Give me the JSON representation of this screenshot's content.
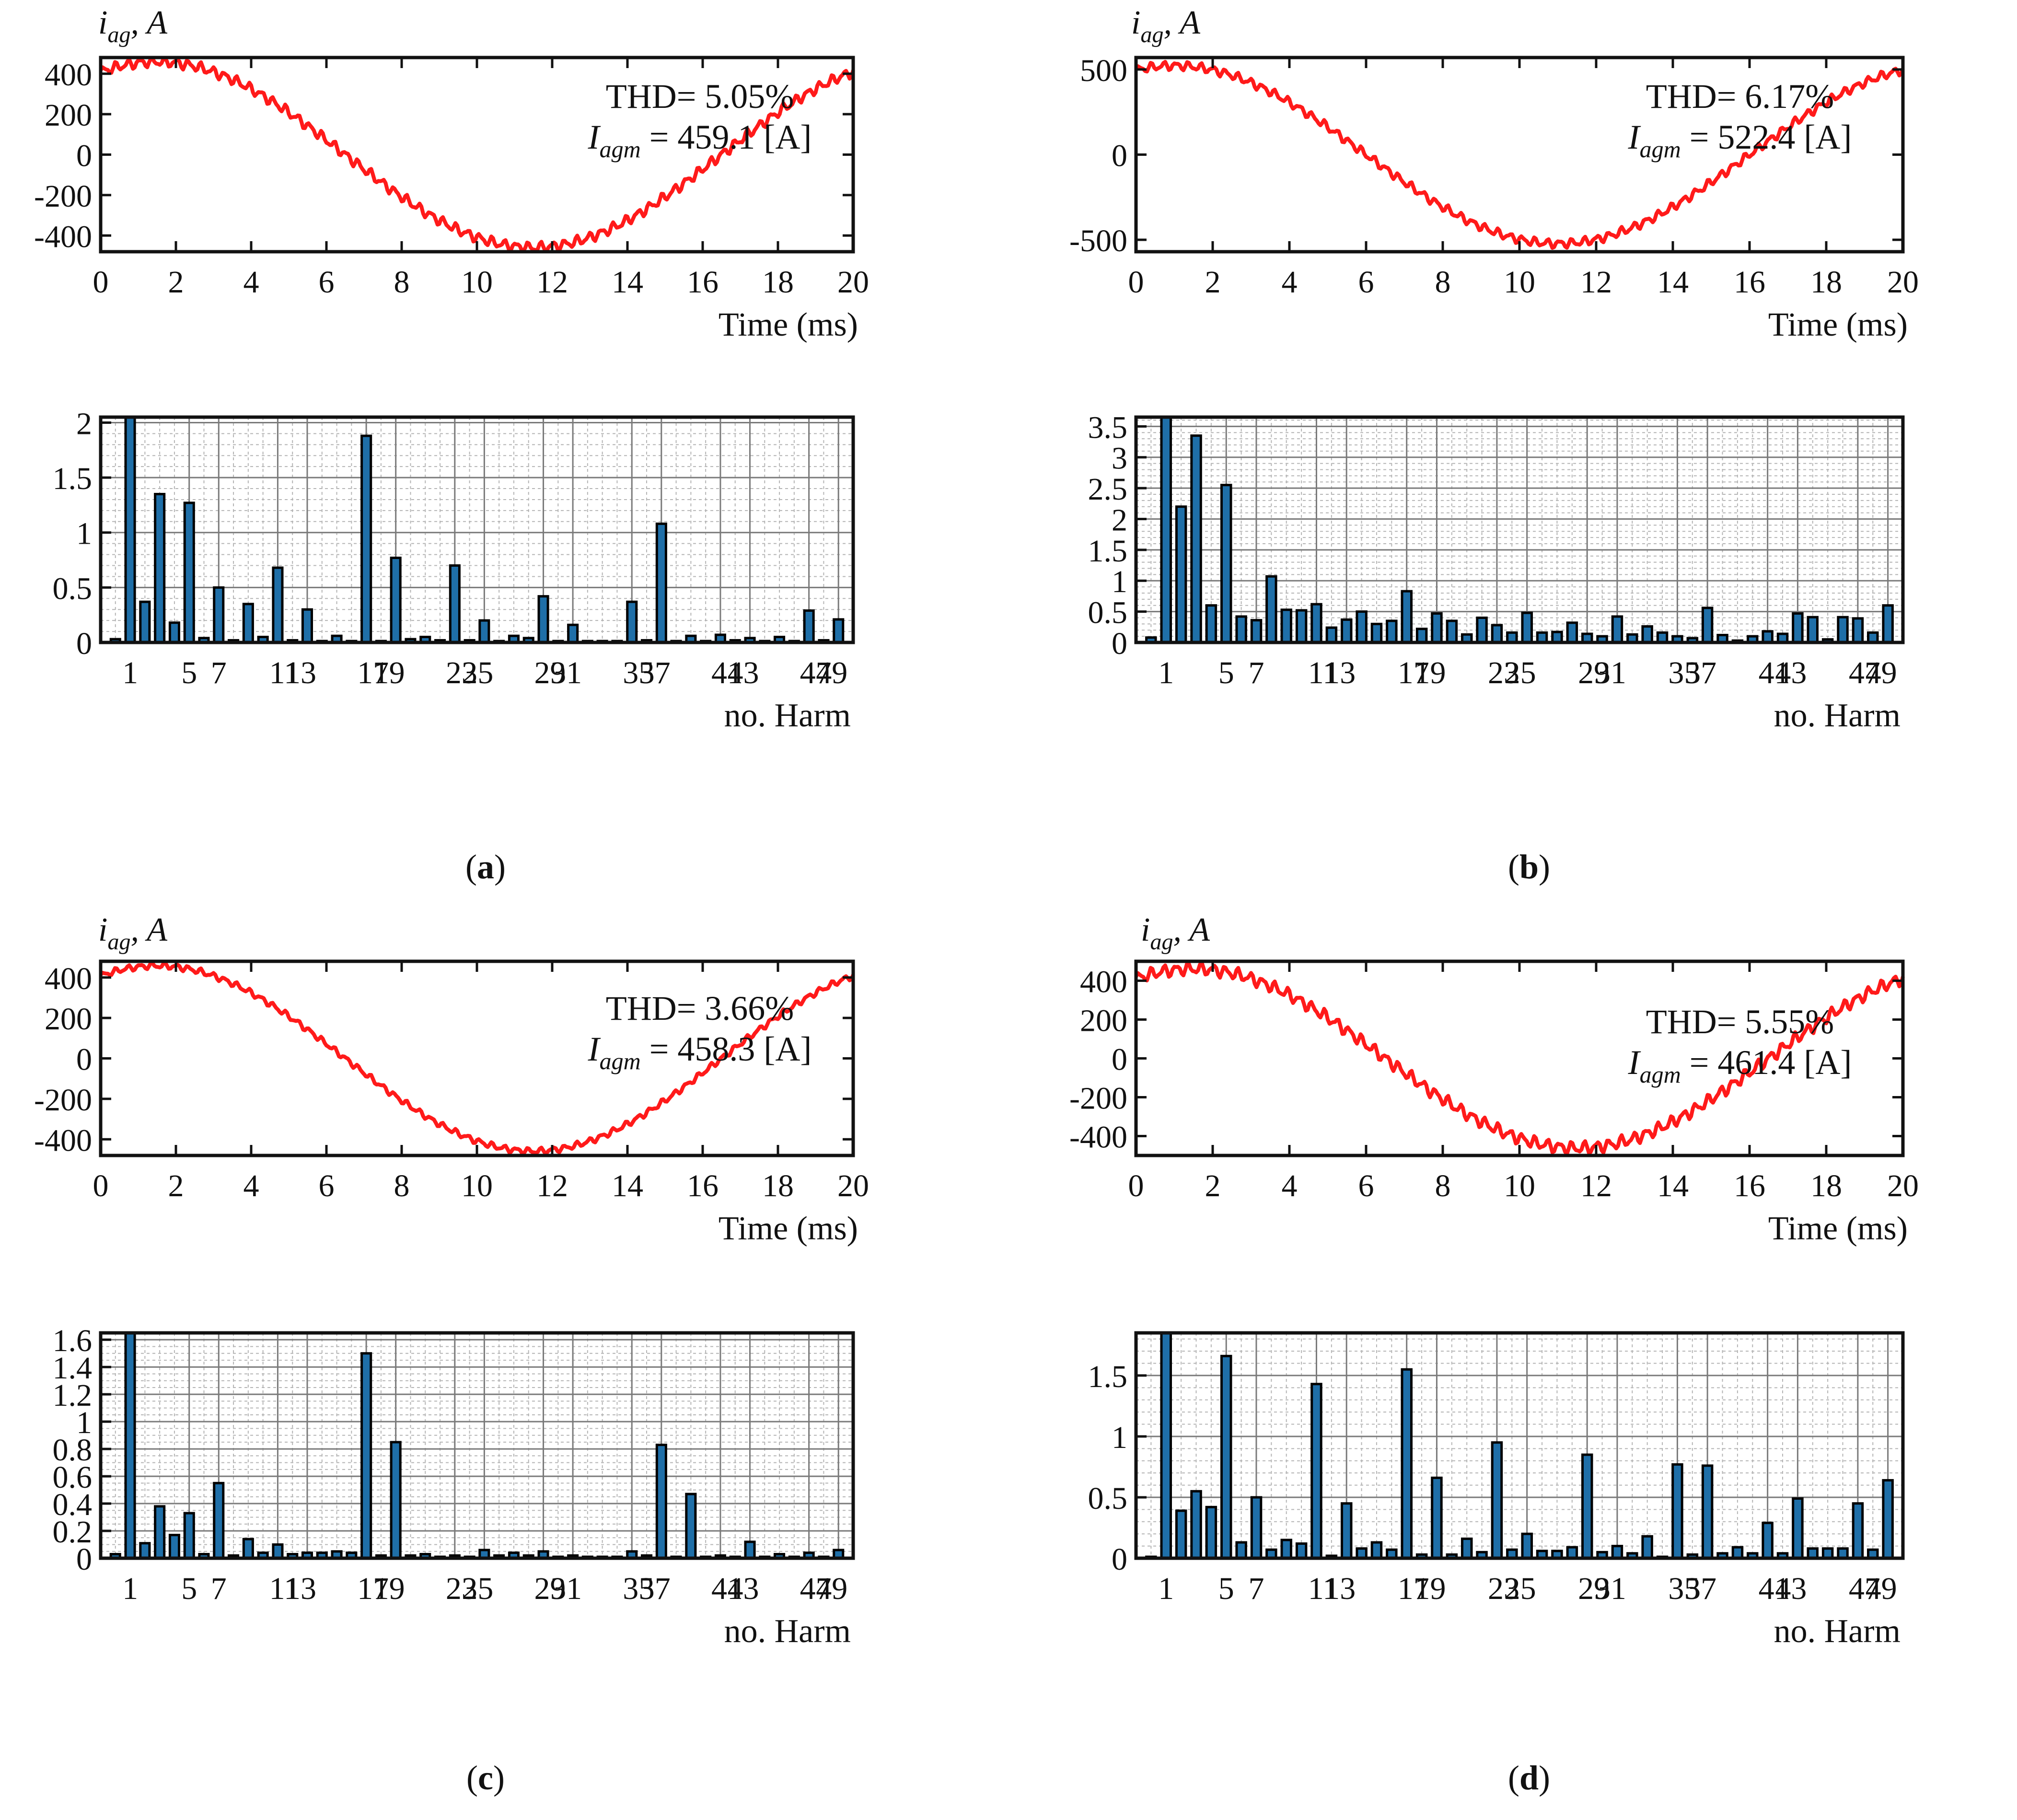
{
  "figure": {
    "time_xlabel": "Time (ms)",
    "harm_xlabel": "no. Harm",
    "colors": {
      "wave": "#ff1a1a",
      "bar_fill": "#1f6fa8",
      "bar_edge": "#000000",
      "axis": "#111111",
      "grid_major": "#7a7a7a",
      "grid_minor": "#b5b5b5"
    },
    "panels": [
      {
        "caption": "a",
        "ylabel_i": "i",
        "ylabel_sub": "ag",
        "ylabel_unit": "A",
        "thd_text": "THD= 5.05%",
        "iagm_symbol": "I",
        "iagm_sub": "agm",
        "iagm_value": "= 459.1 [A]",
        "waveform": {
          "xticks": [
            "0",
            "2",
            "4",
            "6",
            "8",
            "10",
            "12",
            "14",
            "16",
            "18",
            "20"
          ],
          "yticks": [
            "400",
            "200",
            "0",
            "-200",
            "-400"
          ],
          "ytick_values": [
            400,
            200,
            0,
            -200,
            -400
          ],
          "xlim": [
            0,
            20
          ],
          "ylim": [
            -480,
            480
          ],
          "amplitude": 459.1,
          "peak_ms": 1.5,
          "ripple": 20
        },
        "spectrum": {
          "ylim": [
            0,
            2.05
          ],
          "yticks": [
            "2",
            "1.5",
            "1",
            "0.5",
            "0"
          ],
          "ytick_values": [
            2,
            1.5,
            1,
            0.5,
            0
          ],
          "minor_step": 0.1,
          "xticks": [
            "1",
            "5",
            "7",
            "11",
            "13",
            "17",
            "19",
            "23",
            "25",
            "29",
            "31",
            "35",
            "37",
            "41",
            "43",
            "47",
            "49"
          ],
          "values": [
            0.03,
            2.05,
            0.37,
            1.35,
            0.18,
            1.27,
            0.04,
            0.5,
            0.02,
            0.35,
            0.05,
            0.68,
            0.02,
            0.3,
            0.01,
            0.06,
            0.01,
            1.88,
            0.01,
            0.77,
            0.03,
            0.05,
            0.02,
            0.7,
            0.02,
            0.2,
            0.01,
            0.06,
            0.04,
            0.42,
            0.01,
            0.16,
            0.01,
            0.01,
            0.01,
            0.37,
            0.02,
            1.08,
            0.01,
            0.06,
            0.01,
            0.07,
            0.02,
            0.04,
            0.01,
            0.05,
            0.01,
            0.29,
            0.02,
            0.21
          ]
        }
      },
      {
        "caption": "b",
        "ylabel_i": "i",
        "ylabel_sub": "ag",
        "ylabel_unit": "A",
        "thd_text": "THD= 6.17%",
        "iagm_symbol": "I",
        "iagm_sub": "agm",
        "iagm_value": "= 522.4 [A]",
        "waveform": {
          "xticks": [
            "0",
            "2",
            "4",
            "6",
            "8",
            "10",
            "12",
            "14",
            "16",
            "18",
            "20"
          ],
          "yticks": [
            "500",
            "0",
            "-500"
          ],
          "ytick_values": [
            500,
            0,
            -500
          ],
          "xlim": [
            0,
            20
          ],
          "ylim": [
            -570,
            570
          ],
          "amplitude": 522.4,
          "peak_ms": 1.0,
          "ripple": 20
        },
        "spectrum": {
          "ylim": [
            0,
            3.65
          ],
          "yticks": [
            "3.5",
            "3",
            "2.5",
            "2",
            "1.5",
            "1",
            "0.5",
            "0"
          ],
          "ytick_values": [
            3.5,
            3,
            2.5,
            2,
            1.5,
            1,
            0.5,
            0
          ],
          "minor_step": 0.1,
          "xticks": [
            "1",
            "5",
            "7",
            "11",
            "13",
            "17",
            "19",
            "23",
            "25",
            "29",
            "31",
            "35",
            "37",
            "41",
            "43",
            "47",
            "49"
          ],
          "values": [
            0.08,
            3.65,
            2.2,
            3.35,
            0.6,
            2.55,
            0.42,
            0.36,
            1.07,
            0.53,
            0.52,
            0.62,
            0.24,
            0.37,
            0.5,
            0.3,
            0.35,
            0.83,
            0.22,
            0.47,
            0.35,
            0.13,
            0.4,
            0.28,
            0.16,
            0.48,
            0.16,
            0.17,
            0.32,
            0.14,
            0.1,
            0.42,
            0.13,
            0.26,
            0.16,
            0.1,
            0.07,
            0.56,
            0.12,
            0.03,
            0.1,
            0.18,
            0.14,
            0.47,
            0.41,
            0.05,
            0.41,
            0.39,
            0.16,
            0.6
          ]
        }
      },
      {
        "caption": "c",
        "ylabel_i": "i",
        "ylabel_sub": "ag",
        "ylabel_unit": "A",
        "thd_text": "THD= 3.66%",
        "iagm_symbol": "I",
        "iagm_sub": "agm",
        "iagm_value": "= 458.3 [A]",
        "waveform": {
          "xticks": [
            "0",
            "2",
            "4",
            "6",
            "8",
            "10",
            "12",
            "14",
            "16",
            "18",
            "20"
          ],
          "yticks": [
            "400",
            "200",
            "0",
            "-200",
            "-400"
          ],
          "ytick_values": [
            400,
            200,
            0,
            -200,
            -400
          ],
          "xlim": [
            0,
            20
          ],
          "ylim": [
            -480,
            480
          ],
          "amplitude": 458.3,
          "peak_ms": 1.5,
          "ripple": 12
        },
        "spectrum": {
          "ylim": [
            0,
            1.65
          ],
          "yticks": [
            "1.6",
            "1.4",
            "1.2",
            "1",
            "0.8",
            "0.6",
            "0.4",
            "0.2",
            "0"
          ],
          "ytick_values": [
            1.6,
            1.4,
            1.2,
            1,
            0.8,
            0.6,
            0.4,
            0.2,
            0
          ],
          "minor_step": 0.05,
          "xticks": [
            "1",
            "5",
            "7",
            "11",
            "13",
            "17",
            "19",
            "23",
            "25",
            "29",
            "31",
            "35",
            "37",
            "41",
            "43",
            "47",
            "49"
          ],
          "values": [
            0.03,
            1.65,
            0.11,
            0.38,
            0.17,
            0.33,
            0.03,
            0.55,
            0.02,
            0.14,
            0.04,
            0.1,
            0.03,
            0.04,
            0.04,
            0.05,
            0.04,
            1.5,
            0.02,
            0.85,
            0.02,
            0.03,
            0.01,
            0.02,
            0.01,
            0.06,
            0.02,
            0.04,
            0.02,
            0.05,
            0.01,
            0.02,
            0.01,
            0.01,
            0.01,
            0.05,
            0.02,
            0.83,
            0.01,
            0.47,
            0.01,
            0.02,
            0.01,
            0.12,
            0.01,
            0.03,
            0.01,
            0.04,
            0.01,
            0.06
          ]
        }
      },
      {
        "caption": "d",
        "ylabel_i": "i",
        "ylabel_sub": "ag",
        "ylabel_unit": "A",
        "thd_text": "THD= 5.55%",
        "iagm_symbol": "I",
        "iagm_sub": "agm",
        "iagm_value": "= 461.4 [A]",
        "waveform": {
          "xticks": [
            "0",
            "2",
            "4",
            "6",
            "8",
            "10",
            "12",
            "14",
            "16",
            "18",
            "20"
          ],
          "yticks": [
            "400",
            "200",
            "0",
            "-200",
            "-400"
          ],
          "ytick_values": [
            400,
            200,
            0,
            -200,
            -400
          ],
          "xlim": [
            0,
            20
          ],
          "ylim": [
            -500,
            500
          ],
          "amplitude": 461.4,
          "peak_ms": 1.5,
          "ripple": 25
        },
        "spectrum": {
          "ylim": [
            0,
            1.85
          ],
          "yticks": [
            "1.5",
            "1",
            "0.5",
            "0"
          ],
          "ytick_values": [
            1.5,
            1,
            0.5,
            0
          ],
          "minor_step": 0.1,
          "xticks": [
            "1",
            "5",
            "7",
            "11",
            "13",
            "17",
            "19",
            "23",
            "25",
            "29",
            "31",
            "35",
            "37",
            "41",
            "43",
            "47",
            "49"
          ],
          "values": [
            0.0,
            1.85,
            0.39,
            0.55,
            0.42,
            1.66,
            0.13,
            0.5,
            0.07,
            0.15,
            0.12,
            1.43,
            0.02,
            0.45,
            0.08,
            0.13,
            0.07,
            1.55,
            0.03,
            0.66,
            0.03,
            0.16,
            0.05,
            0.95,
            0.07,
            0.2,
            0.06,
            0.06,
            0.09,
            0.85,
            0.05,
            0.1,
            0.04,
            0.18,
            0.01,
            0.77,
            0.03,
            0.76,
            0.04,
            0.09,
            0.04,
            0.29,
            0.04,
            0.49,
            0.08,
            0.08,
            0.08,
            0.45,
            0.07,
            0.64
          ]
        }
      }
    ]
  }
}
